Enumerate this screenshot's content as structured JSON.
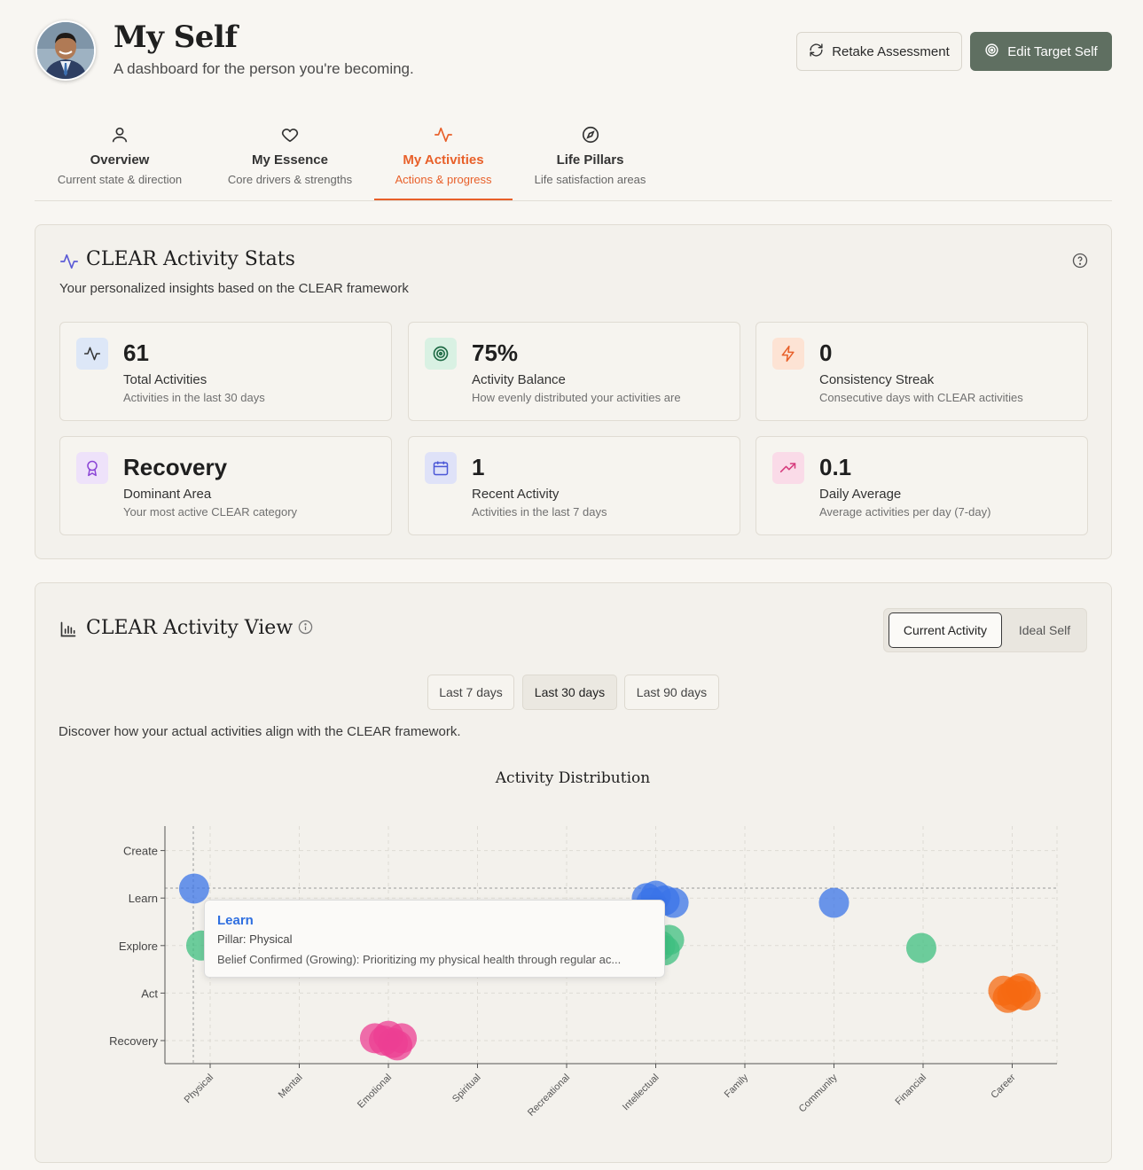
{
  "header": {
    "title": "My Self",
    "subtitle": "A dashboard for the person you're becoming.",
    "retake_label": "Retake Assessment",
    "edit_label": "Edit Target Self"
  },
  "tabs": [
    {
      "label": "Overview",
      "sub": "Current state & direction",
      "icon": "user-icon"
    },
    {
      "label": "My Essence",
      "sub": "Core drivers & strengths",
      "icon": "heart-icon"
    },
    {
      "label": "My Activities",
      "sub": "Actions & progress",
      "icon": "activity-icon",
      "active": true
    },
    {
      "label": "Life Pillars",
      "sub": "Life satisfaction areas",
      "icon": "compass-icon"
    }
  ],
  "stats_panel": {
    "title": "CLEAR Activity Stats",
    "subtitle": "Your personalized insights based on the CLEAR framework",
    "cards": [
      {
        "value": "61",
        "label": "Total Activities",
        "desc": "Activities in the last 30 days",
        "icon": "activity-icon",
        "color": "#3b6fd8",
        "bg": "#dde7f7"
      },
      {
        "value": "75%",
        "label": "Activity Balance",
        "desc": "How evenly distributed your activities are",
        "icon": "target-icon",
        "color": "#1f8f57",
        "bg": "#d9f1e3"
      },
      {
        "value": "0",
        "label": "Consistency Streak",
        "desc": "Consecutive days with CLEAR activities",
        "icon": "zap-icon",
        "color": "#e8602a",
        "bg": "#fde3d4"
      },
      {
        "value": "Recovery",
        "label": "Dominant Area",
        "desc": "Your most active CLEAR category",
        "icon": "award-icon",
        "color": "#8b45d6",
        "bg": "#eee2fa"
      },
      {
        "value": "1",
        "label": "Recent Activity",
        "desc": "Activities in the last 7 days",
        "icon": "calendar-icon",
        "color": "#4a56d6",
        "bg": "#dfe2f8"
      },
      {
        "value": "0.1",
        "label": "Daily Average",
        "desc": "Average activities per day (7-day)",
        "icon": "trending-up-icon",
        "color": "#d63a7c",
        "bg": "#fadbe8"
      }
    ]
  },
  "view_panel": {
    "title": "CLEAR Activity View",
    "toggle": {
      "current": "Current Activity",
      "ideal": "Ideal Self"
    },
    "ranges": [
      "Last 7 days",
      "Last 30 days",
      "Last 90 days"
    ],
    "active_range": "Last 30 days",
    "description": "Discover how your actual activities align with the CLEAR framework."
  },
  "chart_data": {
    "type": "scatter",
    "title": "Activity Distribution",
    "x_categories": [
      "Physical",
      "Mental",
      "Emotional",
      "Spiritual",
      "Recreational",
      "Intellectual",
      "Family",
      "Community",
      "Financial",
      "Career"
    ],
    "y_categories": [
      "Recovery",
      "Act",
      "Explore",
      "Learn",
      "Create"
    ],
    "grid": true,
    "colors": {
      "Learn": "#3b74e8",
      "Explore": "#3fbf80",
      "Act": "#f56a12",
      "Recovery": "#ec3f93"
    },
    "points": [
      {
        "x": "Physical",
        "y": "Learn",
        "dx": -0.18,
        "dy": 0.2
      },
      {
        "x": "Physical",
        "y": "Explore",
        "dx": -0.1,
        "dy": 0.0
      },
      {
        "x": "Emotional",
        "y": "Recovery",
        "dx": -0.05,
        "dy": 0.0
      },
      {
        "x": "Emotional",
        "y": "Recovery",
        "dx": 0.1,
        "dy": -0.1
      },
      {
        "x": "Emotional",
        "y": "Recovery",
        "dx": 0.0,
        "dy": 0.1
      },
      {
        "x": "Emotional",
        "y": "Recovery",
        "dx": 0.15,
        "dy": 0.05
      },
      {
        "x": "Emotional",
        "y": "Recovery",
        "dx": -0.15,
        "dy": 0.05
      },
      {
        "x": "Emotional",
        "y": "Recovery",
        "dx": 0.05,
        "dy": -0.05
      },
      {
        "x": "Intellectual",
        "y": "Learn",
        "dx": -0.1,
        "dy": 0.0
      },
      {
        "x": "Intellectual",
        "y": "Learn",
        "dx": 0.0,
        "dy": 0.05
      },
      {
        "x": "Intellectual",
        "y": "Learn",
        "dx": 0.1,
        "dy": -0.05
      },
      {
        "x": "Intellectual",
        "y": "Learn",
        "dx": 0.2,
        "dy": -0.1
      },
      {
        "x": "Intellectual",
        "y": "Learn",
        "dx": -0.05,
        "dy": -0.1
      },
      {
        "x": "Intellectual",
        "y": "Explore",
        "dx": 0.15,
        "dy": 0.12
      },
      {
        "x": "Intellectual",
        "y": "Explore",
        "dx": 0.1,
        "dy": -0.1
      },
      {
        "x": "Intellectual",
        "y": "Explore",
        "dx": 0.05,
        "dy": 0.0
      },
      {
        "x": "Community",
        "y": "Learn",
        "dx": 0.0,
        "dy": -0.1
      },
      {
        "x": "Financial",
        "y": "Explore",
        "dx": -0.02,
        "dy": -0.05
      },
      {
        "x": "Career",
        "y": "Act",
        "dx": -0.1,
        "dy": 0.05
      },
      {
        "x": "Career",
        "y": "Act",
        "dx": 0.0,
        "dy": -0.05
      },
      {
        "x": "Career",
        "y": "Act",
        "dx": 0.1,
        "dy": 0.1
      },
      {
        "x": "Career",
        "y": "Act",
        "dx": 0.15,
        "dy": -0.05
      },
      {
        "x": "Career",
        "y": "Act",
        "dx": -0.05,
        "dy": -0.1
      },
      {
        "x": "Career",
        "y": "Act",
        "dx": 0.05,
        "dy": 0.05
      }
    ],
    "tooltip": {
      "title": "Learn",
      "pillar": "Pillar: Physical",
      "text": "Belief Confirmed (Growing): Prioritizing my physical health through regular ac..."
    }
  }
}
